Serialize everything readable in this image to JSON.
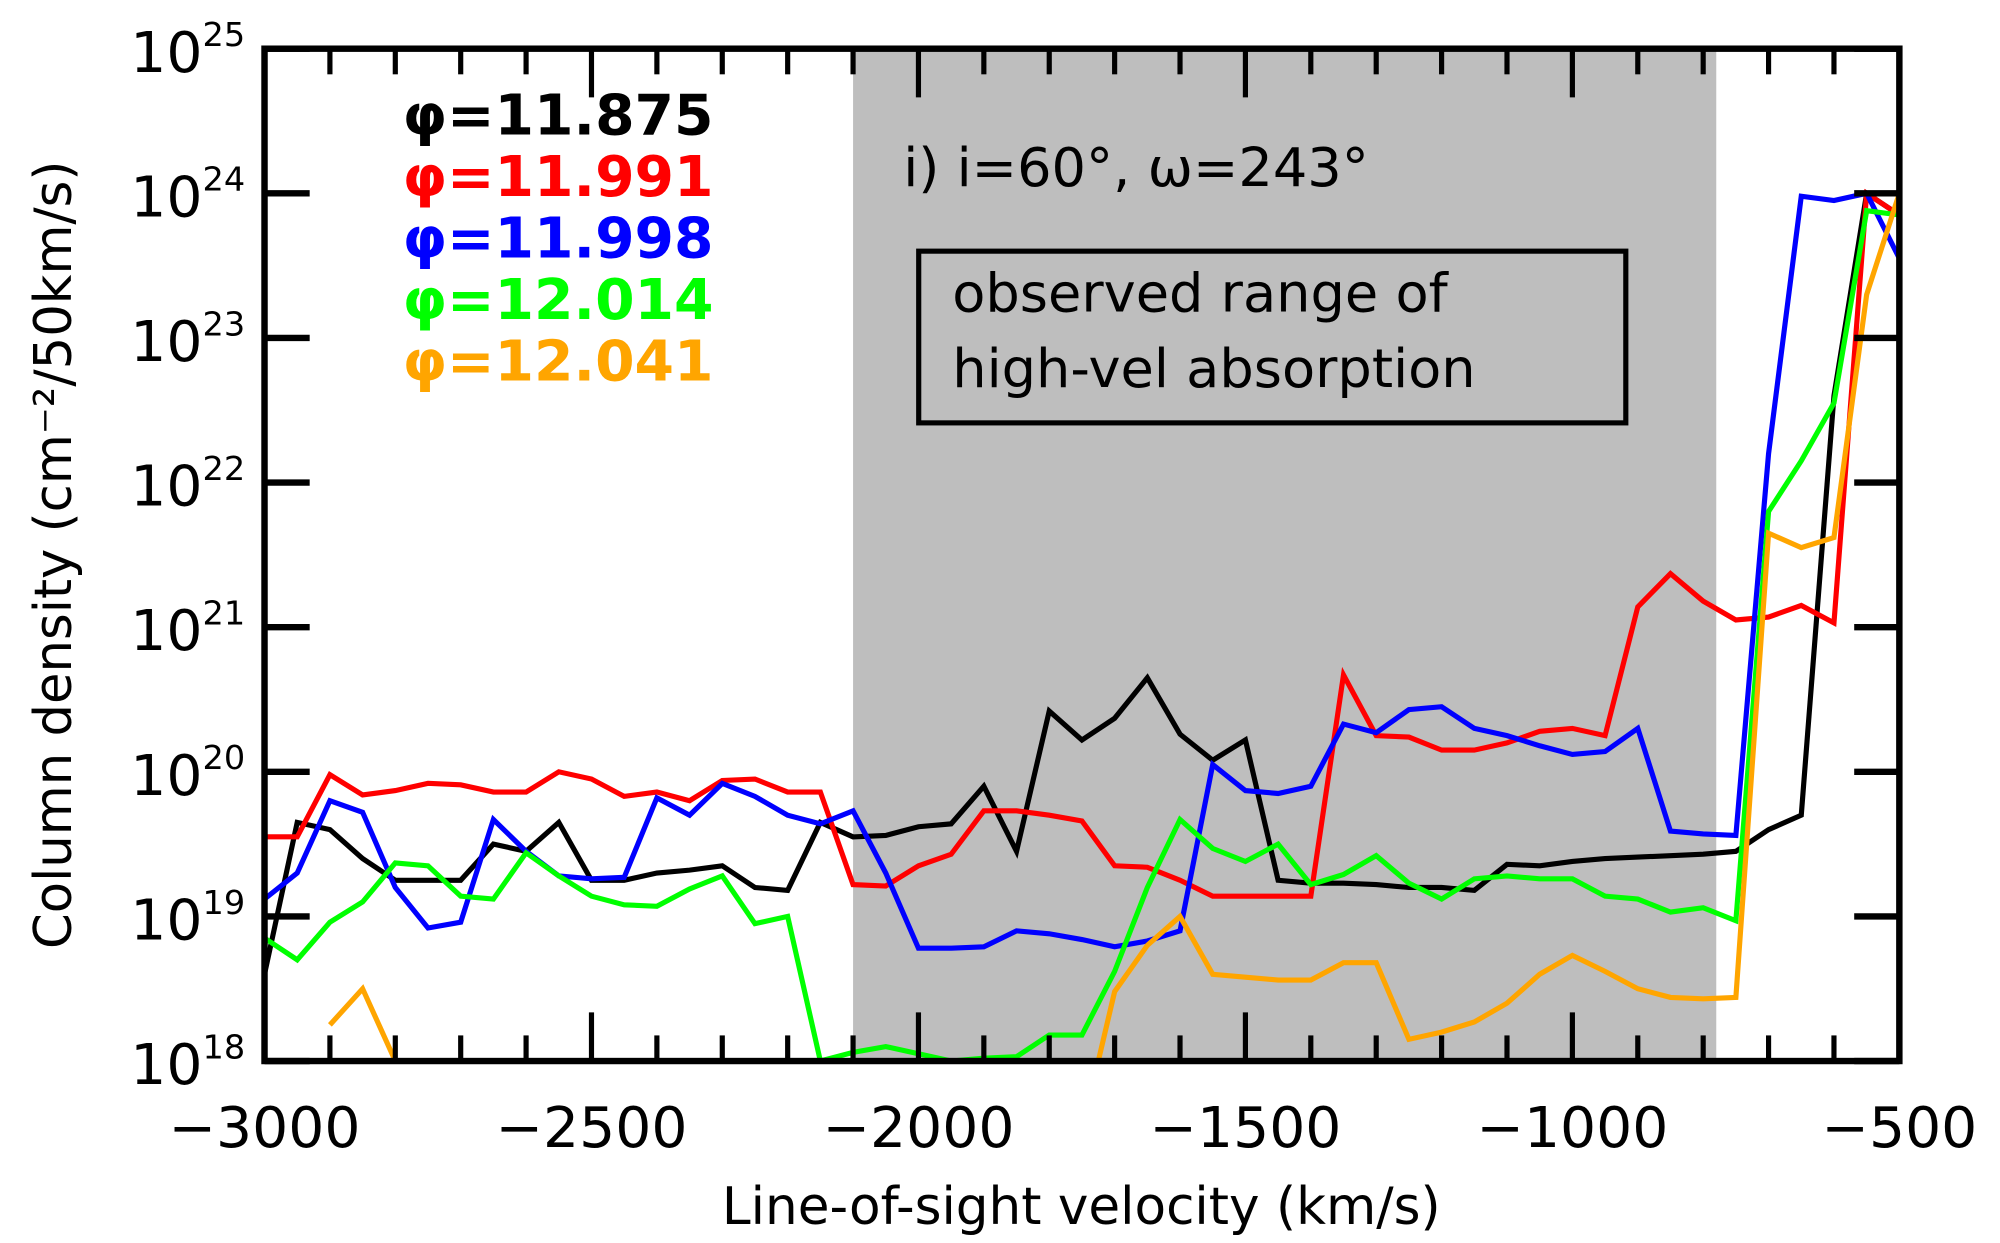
{
  "chart_data": {
    "type": "line",
    "title": "",
    "panel_label": "i) i=60°, ω=243°",
    "xlabel": "Line-of-sight velocity (km/s)",
    "ylabel": "Column density (cm⁻²/50km/s)",
    "xlim": [
      -3000,
      -500
    ],
    "ylim": [
      1e+18,
      1e+25
    ],
    "yscale": "log",
    "x_ticks": [
      "-3000",
      "-2500",
      "-2000",
      "-1500",
      "-1000",
      "-500"
    ],
    "y_ticks": [
      {
        "base": "10",
        "exp": "18"
      },
      {
        "base": "10",
        "exp": "19"
      },
      {
        "base": "10",
        "exp": "20"
      },
      {
        "base": "10",
        "exp": "21"
      },
      {
        "base": "10",
        "exp": "22"
      },
      {
        "base": "10",
        "exp": "23"
      },
      {
        "base": "10",
        "exp": "24"
      },
      {
        "base": "10",
        "exp": "25"
      }
    ],
    "grid": false,
    "legend_position": "upper left",
    "shaded_region": {
      "x_start": -2100,
      "x_end": -780,
      "color": "#bebebe",
      "label_line1": "observed range of",
      "label_line2": "high-vel absorption"
    },
    "series": [
      {
        "name": "φ=11.875",
        "color": "#000000",
        "x": [
          -3000,
          -2950,
          -2900,
          -2850,
          -2800,
          -2750,
          -2700,
          -2650,
          -2600,
          -2550,
          -2500,
          -2450,
          -2400,
          -2350,
          -2300,
          -2250,
          -2200,
          -2150,
          -2100,
          -2050,
          -2000,
          -1950,
          -1900,
          -1850,
          -1800,
          -1750,
          -1700,
          -1650,
          -1600,
          -1550,
          -1500,
          -1450,
          -1400,
          -1350,
          -1300,
          -1250,
          -1200,
          -1150,
          -1100,
          -1050,
          -1000,
          -950,
          -900,
          -850,
          -800,
          -750,
          -700,
          -650,
          -600,
          -550,
          -500
        ],
        "log10_y": [
          18.6,
          19.65,
          19.6,
          19.4,
          19.25,
          19.25,
          19.25,
          19.5,
          19.45,
          19.65,
          19.25,
          19.25,
          19.3,
          19.32,
          19.35,
          19.2,
          19.18,
          19.65,
          19.55,
          19.56,
          19.62,
          19.64,
          19.9,
          19.45,
          20.42,
          20.22,
          20.37,
          20.65,
          20.26,
          20.08,
          20.22,
          19.25,
          19.23,
          19.23,
          19.22,
          19.2,
          19.2,
          19.18,
          19.36,
          19.35,
          19.38,
          19.4,
          19.41,
          19.42,
          19.43,
          19.45,
          19.6,
          19.7,
          22.6,
          24.0,
          23.85
        ]
      },
      {
        "name": "φ=11.991",
        "color": "#ff0000",
        "x": [
          -3000,
          -2950,
          -2900,
          -2850,
          -2800,
          -2750,
          -2700,
          -2650,
          -2600,
          -2550,
          -2500,
          -2450,
          -2400,
          -2350,
          -2300,
          -2250,
          -2200,
          -2150,
          -2100,
          -2050,
          -2000,
          -1950,
          -1900,
          -1850,
          -1800,
          -1750,
          -1700,
          -1650,
          -1600,
          -1550,
          -1500,
          -1450,
          -1400,
          -1350,
          -1300,
          -1250,
          -1200,
          -1150,
          -1100,
          -1050,
          -1000,
          -950,
          -900,
          -850,
          -800,
          -750,
          -700,
          -650,
          -600,
          -550,
          -500
        ],
        "log10_y": [
          19.55,
          19.55,
          19.98,
          19.84,
          19.87,
          19.92,
          19.91,
          19.86,
          19.86,
          20.0,
          19.95,
          19.83,
          19.86,
          19.8,
          19.94,
          19.95,
          19.86,
          19.86,
          19.22,
          19.21,
          19.35,
          19.43,
          19.73,
          19.73,
          19.7,
          19.66,
          19.35,
          19.34,
          19.25,
          19.14,
          19.14,
          19.14,
          19.14,
          20.67,
          20.25,
          20.24,
          20.15,
          20.15,
          20.2,
          20.28,
          20.3,
          20.25,
          21.14,
          21.37,
          21.18,
          21.05,
          21.07,
          21.15,
          21.03,
          24.0,
          23.85
        ]
      },
      {
        "name": "φ=11.998",
        "color": "#0000ff",
        "x": [
          -3000,
          -2950,
          -2900,
          -2850,
          -2800,
          -2750,
          -2700,
          -2650,
          -2600,
          -2550,
          -2500,
          -2450,
          -2400,
          -2350,
          -2300,
          -2250,
          -2200,
          -2150,
          -2100,
          -2050,
          -2000,
          -1950,
          -1900,
          -1850,
          -1800,
          -1750,
          -1700,
          -1650,
          -1600,
          -1550,
          -1500,
          -1450,
          -1400,
          -1350,
          -1300,
          -1250,
          -1200,
          -1150,
          -1100,
          -1050,
          -1000,
          -950,
          -900,
          -850,
          -800,
          -750,
          -700,
          -650,
          -600,
          -550,
          -500
        ],
        "log10_y": [
          19.12,
          19.3,
          19.8,
          19.72,
          19.2,
          18.92,
          18.96,
          19.67,
          19.45,
          19.28,
          19.26,
          19.27,
          19.82,
          19.7,
          19.92,
          19.83,
          19.7,
          19.64,
          19.73,
          19.3,
          18.78,
          18.78,
          18.79,
          18.9,
          18.88,
          18.84,
          18.79,
          18.83,
          18.9,
          20.05,
          19.87,
          19.85,
          19.9,
          20.33,
          20.27,
          20.43,
          20.45,
          20.3,
          20.25,
          20.18,
          20.12,
          20.14,
          20.3,
          19.59,
          19.57,
          19.56,
          22.2,
          23.98,
          23.95,
          24.0,
          23.55
        ]
      },
      {
        "name": "φ=12.014",
        "color": "#00ff00",
        "x": [
          -3000,
          -2950,
          -2900,
          -2850,
          -2800,
          -2750,
          -2700,
          -2650,
          -2600,
          -2550,
          -2500,
          -2450,
          -2400,
          -2350,
          -2300,
          -2250,
          -2200,
          -2150,
          -2100,
          -2050,
          -2000,
          -1950,
          -1900,
          -1850,
          -1800,
          -1750,
          -1700,
          -1650,
          -1600,
          -1550,
          -1500,
          -1450,
          -1400,
          -1350,
          -1300,
          -1250,
          -1200,
          -1150,
          -1100,
          -1050,
          -1000,
          -950,
          -900,
          -850,
          -800,
          -750,
          -700,
          -650,
          -600,
          -550,
          -500
        ],
        "log10_y": [
          18.85,
          18.7,
          18.96,
          19.1,
          19.37,
          19.35,
          19.14,
          19.12,
          19.44,
          19.28,
          19.14,
          19.08,
          19.07,
          19.19,
          19.28,
          18.95,
          19.0,
          18.0,
          18.06,
          18.1,
          18.05,
          18.0,
          18.02,
          18.03,
          18.18,
          18.18,
          18.62,
          19.2,
          19.67,
          19.47,
          19.38,
          19.5,
          19.22,
          19.29,
          19.42,
          19.23,
          19.12,
          19.26,
          19.28,
          19.26,
          19.26,
          19.14,
          19.12,
          19.03,
          19.06,
          18.97,
          21.8,
          22.15,
          22.55,
          23.88,
          23.85
        ]
      },
      {
        "name": "φ=12.041",
        "color": "#ffa500",
        "x": [
          -2900,
          -2850,
          -2800,
          -1725,
          -1700,
          -1650,
          -1600,
          -1550,
          -1500,
          -1450,
          -1400,
          -1350,
          -1300,
          -1250,
          -1200,
          -1150,
          -1100,
          -1050,
          -1000,
          -950,
          -900,
          -850,
          -800,
          -750,
          -700,
          -650,
          -600,
          -550,
          -500
        ],
        "log10_y": [
          18.25,
          18.5,
          18.0,
          18.0,
          18.48,
          18.8,
          19.0,
          18.6,
          18.58,
          18.56,
          18.56,
          18.68,
          18.68,
          18.15,
          18.2,
          18.27,
          18.4,
          18.6,
          18.73,
          18.62,
          18.5,
          18.44,
          18.43,
          18.44,
          21.65,
          21.55,
          21.62,
          23.3,
          24.0
        ]
      }
    ]
  }
}
